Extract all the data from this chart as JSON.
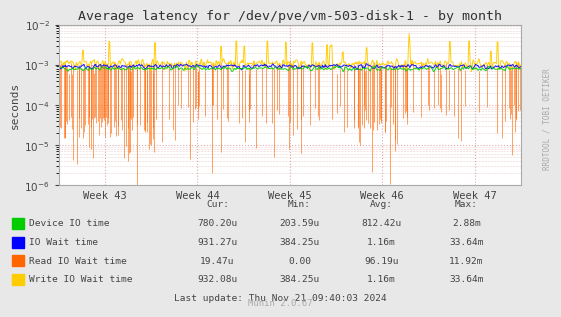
{
  "title": "Average latency for /dev/pve/vm-503-disk-1 - by month",
  "ylabel": "seconds",
  "right_label": "RRDTOOL / TOBI OETIKER",
  "bottom_label": "Munin 2.0.67",
  "last_update": "Last update: Thu Nov 21 09:40:03 2024",
  "bg_color": "#e8e8e8",
  "plot_bg_color": "#ffffff",
  "grid_color": "#ddaaaa",
  "week_labels": [
    "Week 43",
    "Week 44",
    "Week 45",
    "Week 46",
    "Week 47"
  ],
  "ylim_min": 1e-06,
  "ylim_max": 0.01,
  "legend": [
    {
      "label": "Device IO time",
      "color": "#00cc00"
    },
    {
      "label": "IO Wait time",
      "color": "#0000ff"
    },
    {
      "label": "Read IO Wait time",
      "color": "#ff6600"
    },
    {
      "label": "Write IO Wait time",
      "color": "#ffcc00"
    }
  ],
  "legend_stats": {
    "headers": [
      "Cur:",
      "Min:",
      "Avg:",
      "Max:"
    ],
    "rows": [
      [
        "780.20u",
        "203.59u",
        "812.42u",
        "2.88m"
      ],
      [
        "931.27u",
        "384.25u",
        "1.16m",
        "33.64m"
      ],
      [
        "19.47u",
        "0.00",
        "96.19u",
        "11.92m"
      ],
      [
        "932.08u",
        "384.25u",
        "1.16m",
        "33.64m"
      ]
    ]
  },
  "seed": 42,
  "n_points": 700,
  "week_tick_positions": [
    70,
    210,
    350,
    490,
    630
  ]
}
